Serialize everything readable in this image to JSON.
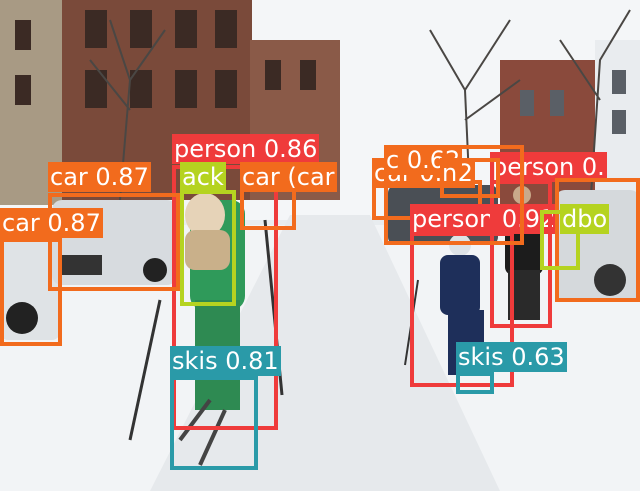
{
  "photo": {
    "subject": "street-skiing-snow-photo"
  },
  "colors": {
    "person": "#ef3b3b",
    "car": "#f26b1d",
    "skis": "#2a9aa8",
    "backpack": "#b5d320",
    "snow": "#f2f4f6",
    "sky": "#f4f6f8",
    "brick": "#7a4a3a"
  },
  "detections": [
    {
      "cls": "person",
      "label": "person",
      "score": "0.86"
    },
    {
      "cls": "car",
      "label": "car",
      "score": "0.87"
    },
    {
      "cls": "backpack",
      "label": "ack",
      "score": ""
    },
    {
      "cls": "car",
      "label": "car",
      "score": "(car"
    },
    {
      "cls": "car",
      "label": "car",
      "score": "0.82"
    },
    {
      "cls": "car",
      "label": "car",
      "score": "0.87"
    },
    {
      "cls": "person",
      "label": "person",
      "score": "0.92"
    },
    {
      "cls": "person",
      "label": "person",
      "score": "0."
    },
    {
      "cls": "skis",
      "label": "skis",
      "score": "0.81"
    },
    {
      "cls": "skis",
      "label": "skis",
      "score": "0.63"
    },
    {
      "cls": "car",
      "label": "c",
      "score": "0.62"
    },
    {
      "cls": "car",
      "label": "n",
      "score": ""
    },
    {
      "cls": "car",
      "label": "",
      "score": ""
    },
    {
      "cls": "backpack",
      "label": "dbo",
      "score": ""
    }
  ]
}
